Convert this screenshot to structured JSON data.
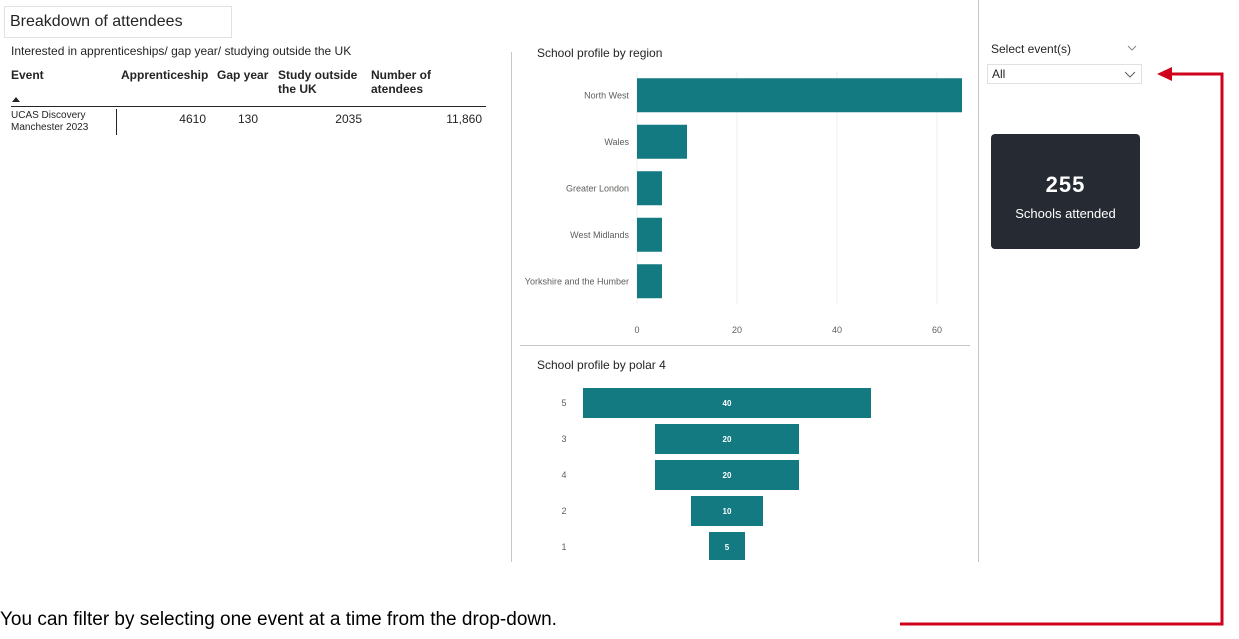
{
  "report": {
    "title": "Breakdown of attendees",
    "table_caption": "Interested in apprenticeships/ gap year/ studying outside the UK"
  },
  "table": {
    "columns": [
      "Event",
      "Apprenticeship",
      "Gap year",
      "Study outside the UK",
      "Number of atendees"
    ],
    "col_study_line1": "Study outside",
    "col_study_line2": "the UK",
    "col_attendees_line1": "Number of",
    "col_attendees_line2": "atendees",
    "rows": [
      {
        "event_line1": "UCAS Discovery",
        "event_line2": "Manchester 2023",
        "apprenticeship": "4610",
        "gap_year": "130",
        "study_outside": "2035",
        "attendees": "11,860"
      }
    ]
  },
  "chart_data": [
    {
      "type": "bar",
      "orientation": "horizontal",
      "title": "School profile by region",
      "categories": [
        "North West",
        "Wales",
        "Greater London",
        "West Midlands",
        "Yorkshire and the Humber"
      ],
      "values": [
        65,
        10,
        5,
        5,
        5
      ],
      "xlim": [
        0,
        66
      ],
      "ticks": [
        "0",
        "20",
        "40",
        "60"
      ],
      "color": "#127a80",
      "grid": true
    },
    {
      "type": "bar",
      "orientation": "funnel",
      "title": "School profile by polar 4",
      "categories": [
        "5",
        "3",
        "4",
        "2",
        "1"
      ],
      "values": [
        40,
        20,
        20,
        10,
        5
      ],
      "data_labels": [
        "40",
        "20",
        "20",
        "10",
        "5"
      ],
      "color": "#127a80"
    }
  ],
  "filter": {
    "label": "Select event(s)",
    "selected": "All"
  },
  "card": {
    "value": "255",
    "label": "Schools attended"
  },
  "annotation": {
    "text": "You can filter by selecting one event at a time from the drop-down."
  },
  "colors": {
    "bar": "#127a80",
    "card_bg": "#252a33",
    "arrow": "#d0021b"
  }
}
